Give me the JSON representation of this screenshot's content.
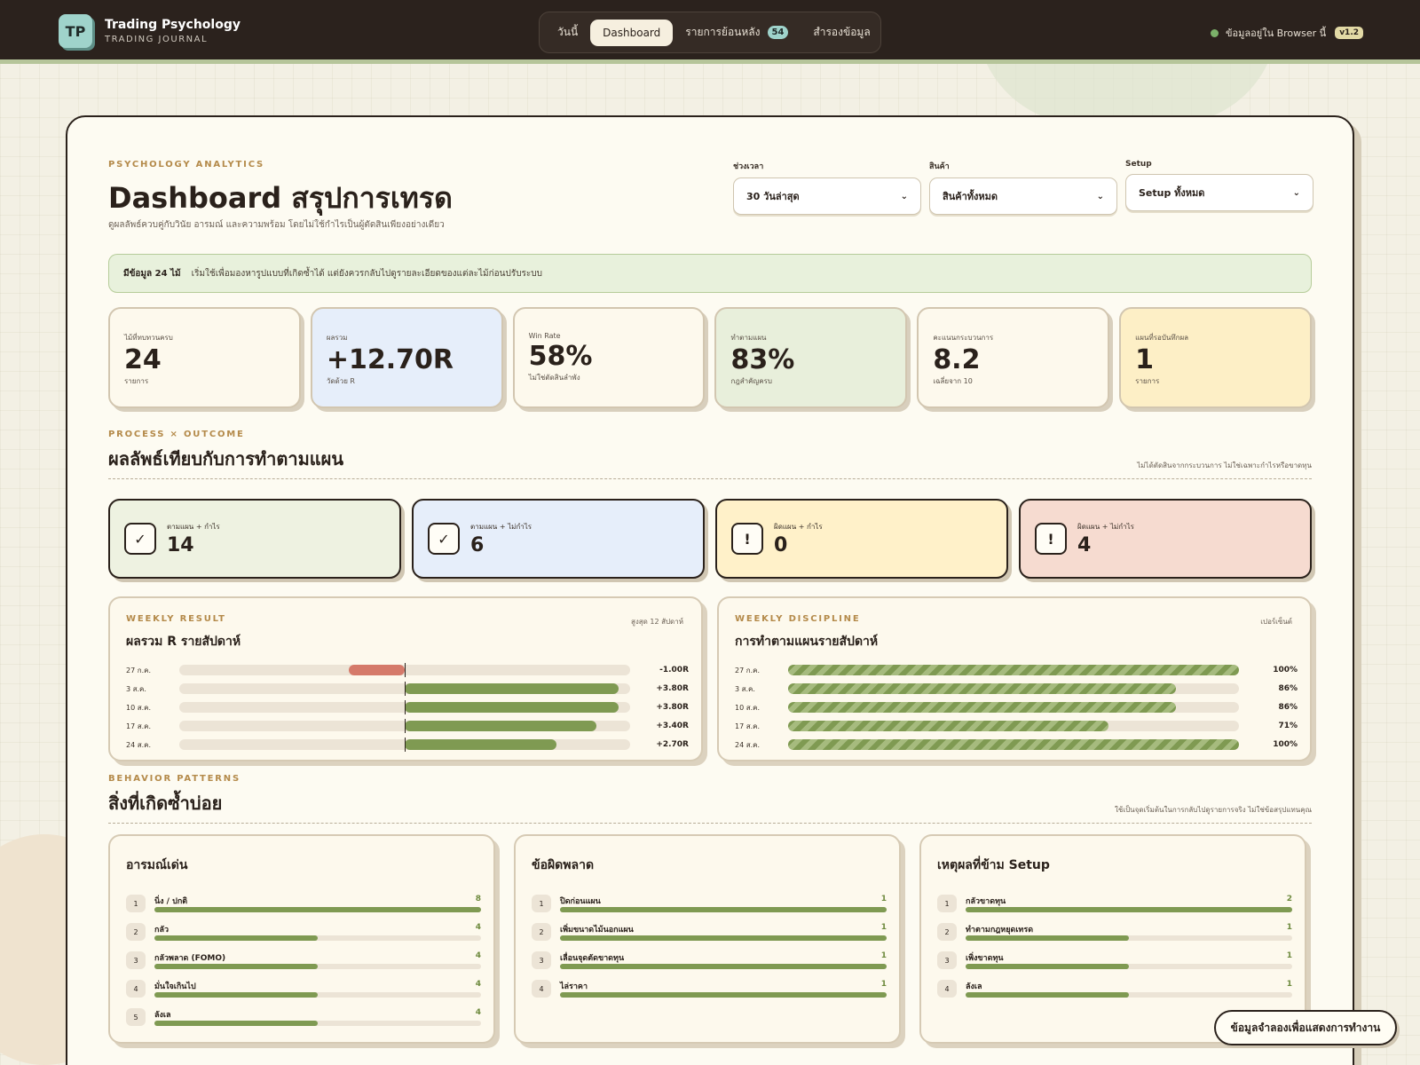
{
  "app": {
    "logo": "TP",
    "title": "Trading Psychology",
    "subtitle": "TRADING JOURNAL",
    "status": "ข้อมูลอยู่ใน Browser นี้",
    "version": "v1.2"
  },
  "nav": [
    {
      "label": "วันนี้",
      "active": false
    },
    {
      "label": "Dashboard",
      "active": true
    },
    {
      "label": "รายการย้อนหลัง",
      "badge": "54",
      "active": false
    },
    {
      "label": "สำรองข้อมูล",
      "active": false
    }
  ],
  "header": {
    "eyebrow": "PSYCHOLOGY ANALYTICS",
    "title": "Dashboard สรุปการเทรด",
    "desc": "ดูผลลัพธ์ควบคู่กับวินัย อารมณ์ และความพร้อม โดยไม่ใช้กำไรเป็นผู้ตัดสินเพียงอย่างเดียว"
  },
  "filters": [
    {
      "label": "ช่วงเวลา",
      "value": "30 วันล่าสุด"
    },
    {
      "label": "สินค้า",
      "value": "สินค้าทั้งหมด"
    },
    {
      "label": "Setup",
      "value": "Setup ทั้งหมด"
    }
  ],
  "notice": {
    "strong": "มีข้อมูล 24 ไม้",
    "text": "เริ่มใช้เพื่อมองหารูปแบบที่เกิดซ้ำได้ แต่ยังควรกลับไปดูรายละเอียดของแต่ละไม้ก่อนปรับระบบ"
  },
  "kpis": [
    {
      "label": "ไม้ที่ทบทวนครบ",
      "value": "24",
      "sub": "รายการ",
      "bg": "#fdf9ed"
    },
    {
      "label": "ผลรวม",
      "value": "+12.70R",
      "sub": "วัดด้วย R",
      "bg": "#e6eefa"
    },
    {
      "label": "Win Rate",
      "value": "58%",
      "sub": "ไม่ใช่ตัดสินลำพัง",
      "bg": "#fdf9ed"
    },
    {
      "label": "ทำตามแผน",
      "value": "83%",
      "sub": "กฎสำคัญครบ",
      "bg": "#e8efdb"
    },
    {
      "label": "คะแนนกระบวนการ",
      "value": "8.2",
      "sub": "เฉลี่ยจาก 10",
      "bg": "#fdf9ed"
    },
    {
      "label": "แผนที่รอบันทึกผล",
      "value": "1",
      "sub": "รายการ",
      "bg": "#fdefc6"
    }
  ],
  "process": {
    "eyebrow": "PROCESS × OUTCOME",
    "title": "ผลลัพธ์เทียบกับการทำตามแผน",
    "note": "ไม่ได้ตัดสินจากกระบวนการ ไม่ใช่เฉพาะกำไรหรือขาดทุน",
    "quads": [
      {
        "icon": "✓",
        "icon_name": "check-icon",
        "label": "ตามแผน + กำไร",
        "value": "14",
        "bg": "#eef2e1"
      },
      {
        "icon": "✓",
        "icon_name": "check-icon",
        "label": "ตามแผน + ไม่กำไร",
        "value": "6",
        "bg": "#e6eefa"
      },
      {
        "icon": "!",
        "icon_name": "warning-icon",
        "label": "ผิดแผน + กำไร",
        "value": "0",
        "bg": "#fff1c9"
      },
      {
        "icon": "!",
        "icon_name": "warning-icon",
        "label": "ผิดแผน + ไม่กำไร",
        "value": "4",
        "bg": "#f6dbd0"
      }
    ]
  },
  "weekly_result": {
    "eyebrow": "WEEKLY RESULT",
    "title": "ผลรวม R รายสัปดาห์",
    "note": "สูงสุด 12 สัปดาห์",
    "rows": [
      {
        "label": "27 ก.ค.",
        "value": -1.0,
        "text": "-1.00R"
      },
      {
        "label": "3 ส.ค.",
        "value": 3.8,
        "text": "+3.80R"
      },
      {
        "label": "10 ส.ค.",
        "value": 3.8,
        "text": "+3.80R"
      },
      {
        "label": "17 ส.ค.",
        "value": 3.4,
        "text": "+3.40R"
      },
      {
        "label": "24 ส.ค.",
        "value": 2.7,
        "text": "+2.70R"
      }
    ]
  },
  "weekly_discipline": {
    "eyebrow": "WEEKLY DISCIPLINE",
    "title": "การทำตามแผนรายสัปดาห์",
    "note": "เปอร์เซ็นต์",
    "rows": [
      {
        "label": "27 ก.ค.",
        "value": 100,
        "text": "100%"
      },
      {
        "label": "3 ส.ค.",
        "value": 86,
        "text": "86%"
      },
      {
        "label": "10 ส.ค.",
        "value": 86,
        "text": "86%"
      },
      {
        "label": "17 ส.ค.",
        "value": 71,
        "text": "71%"
      },
      {
        "label": "24 ส.ค.",
        "value": 100,
        "text": "100%"
      }
    ]
  },
  "behavior": {
    "eyebrow": "BEHAVIOR PATTERNS",
    "title": "สิ่งที่เกิดซ้ำบ่อย",
    "note": "ใช้เป็นจุดเริ่มต้นในการกลับไปดูรายการจริง ไม่ใช่ข้อสรุปแทนคุณ",
    "panels": [
      {
        "title": "อารมณ์เด่น",
        "max": 8,
        "items": [
          {
            "n": "1",
            "label": "นิ่ง / ปกติ",
            "count": 8
          },
          {
            "n": "2",
            "label": "กลัว",
            "count": 4
          },
          {
            "n": "3",
            "label": "กลัวพลาด (FOMO)",
            "count": 4
          },
          {
            "n": "4",
            "label": "มั่นใจเกินไป",
            "count": 4
          },
          {
            "n": "5",
            "label": "ลังเล",
            "count": 4
          }
        ]
      },
      {
        "title": "ข้อผิดพลาด",
        "max": 1,
        "items": [
          {
            "n": "1",
            "label": "ปิดก่อนแผน",
            "count": 1
          },
          {
            "n": "2",
            "label": "เพิ่มขนาดไม้นอกแผน",
            "count": 1
          },
          {
            "n": "3",
            "label": "เลื่อนจุดตัดขาดทุน",
            "count": 1
          },
          {
            "n": "4",
            "label": "ไล่ราคา",
            "count": 1
          }
        ]
      },
      {
        "title": "เหตุผลที่ข้าม Setup",
        "max": 2,
        "items": [
          {
            "n": "1",
            "label": "กลัวขาดทุน",
            "count": 2
          },
          {
            "n": "2",
            "label": "ทำตามกฎหยุดเทรด",
            "count": 1
          },
          {
            "n": "3",
            "label": "เพิ่งขาดทุน",
            "count": 1
          },
          {
            "n": "4",
            "label": "ลังเล",
            "count": 1
          }
        ]
      }
    ]
  },
  "floating_button": "ข้อมูลจำลองเพื่อแสดงการทำงาน",
  "colors": {
    "positive": "#7f9a52",
    "negative": "#d57a6a",
    "accent": "#b48a4a",
    "dark": "#2b221d"
  }
}
